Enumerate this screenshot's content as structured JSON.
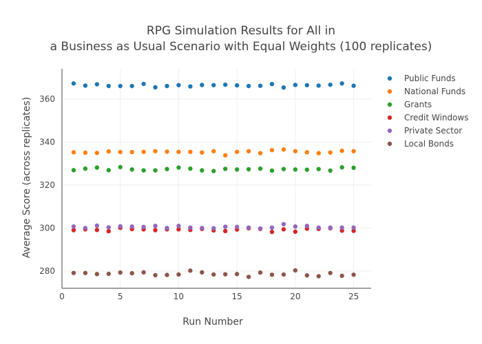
{
  "chart_data": {
    "type": "scatter",
    "title_lines": [
      "RPG Simulation Results for All in",
      "a Business as Usual Scenario with Equal Weights (100 replicates)"
    ],
    "xlabel": "Run Number",
    "ylabel": "Average Score (across replicates)",
    "xlim": [
      0,
      26.5
    ],
    "ylim": [
      272,
      374
    ],
    "x_ticks": [
      0,
      5,
      10,
      15,
      20,
      25
    ],
    "y_ticks": [
      280,
      300,
      320,
      340,
      360
    ],
    "grid": true,
    "legend_position": "top-right",
    "x": [
      1,
      2,
      3,
      4,
      5,
      6,
      7,
      8,
      9,
      10,
      11,
      12,
      13,
      14,
      15,
      16,
      17,
      18,
      19,
      20,
      21,
      22,
      23,
      24,
      25
    ],
    "series": [
      {
        "name": "Public Funds",
        "color": "#1f77b4",
        "values": [
          367.2,
          366.2,
          366.8,
          366.0,
          366.0,
          366.0,
          367.0,
          365.4,
          366.0,
          366.4,
          365.8,
          366.5,
          366.4,
          366.6,
          366.3,
          366.0,
          366.1,
          366.9,
          365.3,
          366.5,
          366.4,
          366.2,
          366.6,
          367.2,
          366.1
        ]
      },
      {
        "name": "National Funds",
        "color": "#ff7f0e",
        "values": [
          335.2,
          335.0,
          334.9,
          335.6,
          335.3,
          335.3,
          335.4,
          335.7,
          335.5,
          335.4,
          335.4,
          335.1,
          335.7,
          333.8,
          335.4,
          335.7,
          334.8,
          336.2,
          336.5,
          335.7,
          335.2,
          334.8,
          335.1,
          335.9,
          335.7
        ]
      },
      {
        "name": "Grants",
        "color": "#2ca02c",
        "values": [
          326.9,
          327.6,
          328.1,
          326.9,
          328.3,
          327.2,
          326.8,
          326.8,
          327.4,
          328.1,
          327.6,
          326.8,
          326.5,
          327.5,
          327.2,
          327.3,
          327.6,
          326.7,
          327.4,
          327.2,
          327.1,
          327.4,
          326.7,
          328.2,
          328.0
        ]
      },
      {
        "name": "Credit Windows",
        "color": "#d62728",
        "values": [
          299.0,
          299.4,
          299.1,
          298.5,
          300.1,
          299.5,
          299.4,
          299.0,
          299.4,
          299.4,
          299.1,
          299.6,
          298.9,
          298.6,
          299.3,
          299.9,
          299.6,
          298.2,
          299.4,
          298.3,
          299.7,
          299.6,
          299.9,
          298.8,
          298.7
        ]
      },
      {
        "name": "Private Sector",
        "color": "#9467bd",
        "values": [
          300.7,
          300.0,
          301.1,
          300.3,
          300.8,
          300.7,
          300.5,
          301.0,
          300.0,
          301.0,
          300.2,
          300.0,
          299.9,
          300.6,
          300.5,
          300.2,
          299.8,
          300.2,
          301.8,
          300.7,
          301.0,
          300.2,
          300.2,
          300.2,
          300.2
        ]
      },
      {
        "name": "Local Bonds",
        "color": "#8c564b",
        "values": [
          279.1,
          279.1,
          278.6,
          278.7,
          279.3,
          279.0,
          279.4,
          278.1,
          278.2,
          278.4,
          280.2,
          279.4,
          278.4,
          278.5,
          278.6,
          277.3,
          279.3,
          278.3,
          278.4,
          280.3,
          278.0,
          277.6,
          279.1,
          277.8,
          278.3
        ]
      }
    ]
  }
}
